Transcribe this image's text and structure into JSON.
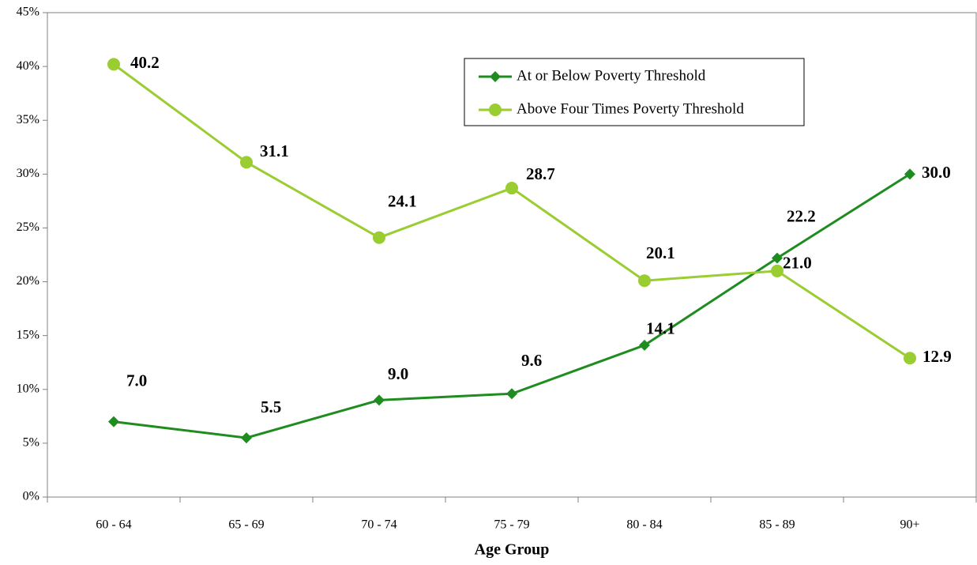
{
  "chart_data": {
    "type": "line",
    "x_label": "Age Group",
    "categories": [
      "60 - 64",
      "65 - 69",
      "70 - 74",
      "75 - 79",
      "80 - 84",
      "85 - 89",
      "90+"
    ],
    "series": [
      {
        "name": "At or Below Poverty Threshold",
        "color": "#1f8c1f",
        "marker": "diamond",
        "values": [
          7.0,
          5.5,
          9.0,
          9.6,
          14.1,
          22.2,
          30.0
        ],
        "value_labels": [
          "7.0",
          "5.5",
          "9.0",
          "9.6",
          "14.1",
          "22.2",
          "30.0"
        ]
      },
      {
        "name": "Above Four Times Poverty Threshold",
        "color": "#9acd32",
        "marker": "circle",
        "values": [
          40.2,
          31.1,
          24.1,
          28.7,
          20.1,
          21.0,
          12.9
        ],
        "value_labels": [
          "40.2",
          "31.1",
          "24.1",
          "28.7",
          "20.1",
          "21.0",
          "12.9"
        ]
      }
    ],
    "ylim": [
      0,
      45
    ],
    "yticks": [
      {
        "value": 0,
        "label": "0%"
      },
      {
        "value": 5,
        "label": "5%"
      },
      {
        "value": 10,
        "label": "10%"
      },
      {
        "value": 15,
        "label": "15%"
      },
      {
        "value": 20,
        "label": "20%"
      },
      {
        "value": 25,
        "label": "25%"
      },
      {
        "value": 30,
        "label": "30%"
      },
      {
        "value": 35,
        "label": "35%"
      },
      {
        "value": 40,
        "label": "40%"
      },
      {
        "value": 45,
        "label": "45%"
      }
    ],
    "grid": false,
    "legend": "top-right"
  }
}
